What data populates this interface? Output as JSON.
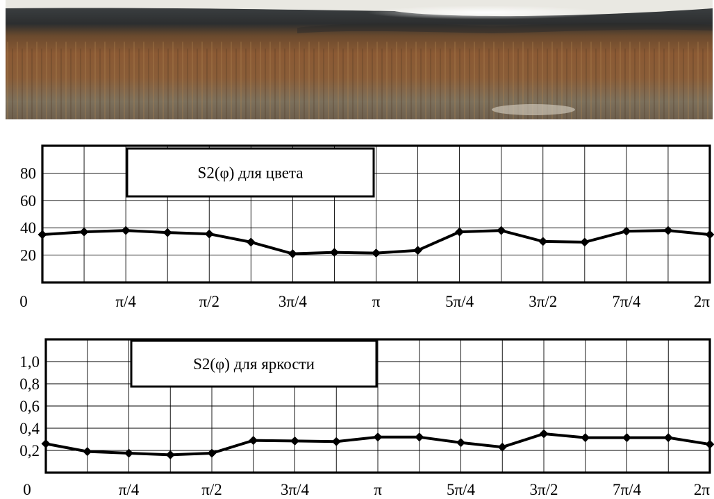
{
  "photo": {
    "description": "",
    "colors": {
      "top": "#2f3336",
      "band": "#8a5a34",
      "bottom": "#7a6f5a",
      "highlight": "#f3f0e6"
    }
  },
  "chart_data": [
    {
      "type": "line",
      "title": "S2(φ) для цвета",
      "xlabel": "",
      "ylabel": "",
      "x_tick_labels": [
        "0",
        "π/4",
        "π/2",
        "3π/4",
        "π",
        "5π/4",
        "3π/2",
        "7π/4",
        "2π"
      ],
      "y_tick_labels": [
        "80",
        "60",
        "40",
        "20"
      ],
      "y_ticks": [
        80,
        60,
        40,
        20
      ],
      "xlim": [
        0,
        6.2832
      ],
      "ylim": [
        0,
        100
      ],
      "grid": true,
      "legend_position": "top-left",
      "series": [
        {
          "name": "S2(φ) для цвета",
          "x": [
            0,
            0.3927,
            0.7854,
            1.1781,
            1.5708,
            1.9635,
            2.3562,
            2.7489,
            3.1416,
            3.5343,
            3.927,
            4.3197,
            4.7124,
            5.1051,
            5.4978,
            5.8905,
            6.2832
          ],
          "y": [
            35,
            37,
            38,
            36.5,
            35.5,
            29.5,
            21,
            22,
            21.5,
            23.5,
            37,
            38,
            30,
            29.5,
            37.5,
            38,
            35
          ]
        }
      ]
    },
    {
      "type": "line",
      "title": "S2(φ) для яркости",
      "xlabel": "",
      "ylabel": "",
      "x_tick_labels": [
        "0",
        "π/4",
        "π/2",
        "3π/4",
        "π",
        "5π/4",
        "3π/2",
        "7π/4",
        "2π"
      ],
      "y_tick_labels": [
        "1,0",
        "0,8",
        "0,6",
        "0,4",
        "0,2"
      ],
      "y_ticks": [
        1.0,
        0.8,
        0.6,
        0.4,
        0.2
      ],
      "xlim": [
        0,
        6.2832
      ],
      "ylim": [
        0,
        1.2
      ],
      "grid": true,
      "legend_position": "top-left",
      "series": [
        {
          "name": "S2(φ) для яркости",
          "x": [
            0,
            0.3927,
            0.7854,
            1.1781,
            1.5708,
            1.9635,
            2.3562,
            2.7489,
            3.1416,
            3.5343,
            3.927,
            4.3197,
            4.7124,
            5.1051,
            5.4978,
            5.8905,
            6.2832
          ],
          "y": [
            0.26,
            0.19,
            0.175,
            0.16,
            0.175,
            0.29,
            0.285,
            0.28,
            0.32,
            0.32,
            0.27,
            0.23,
            0.35,
            0.315,
            0.315,
            0.315,
            0.255
          ]
        }
      ]
    }
  ]
}
